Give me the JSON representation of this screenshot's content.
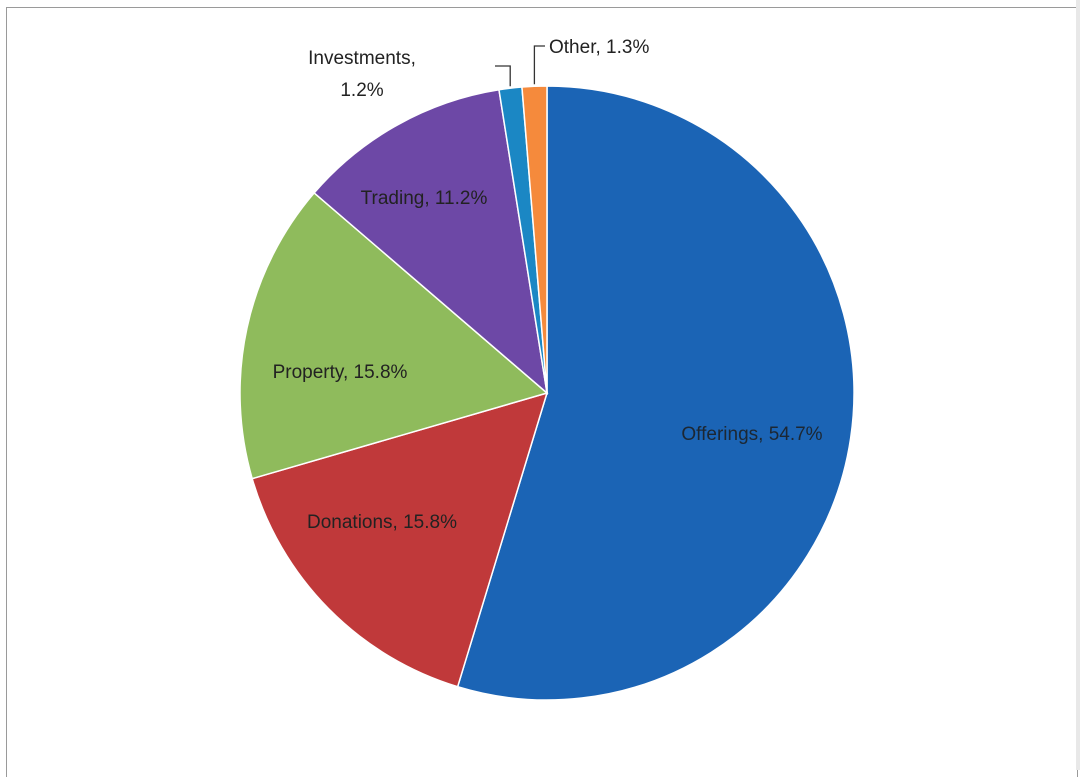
{
  "chart_data": {
    "type": "pie",
    "title": "",
    "legend": "none",
    "slices": [
      {
        "name": "Offerings",
        "value": 54.7,
        "label": "Offerings, 54.7%",
        "color": "#1b64b5"
      },
      {
        "name": "Donations",
        "value": 15.8,
        "label": "Donations, 15.8%",
        "color": "#c0393a"
      },
      {
        "name": "Property",
        "value": 15.8,
        "label": "Property, 15.8%",
        "color": "#8fbb5c"
      },
      {
        "name": "Trading",
        "value": 11.2,
        "label": "Trading, 11.2%",
        "color": "#6d48a6"
      },
      {
        "name": "Investments",
        "value": 1.2,
        "label_lines": [
          "Investments,",
          "1.2%"
        ],
        "color": "#1b87c4"
      },
      {
        "name": "Other",
        "value": 1.3,
        "label": "Other, 1.3%",
        "color": "#f58a3c"
      }
    ]
  }
}
